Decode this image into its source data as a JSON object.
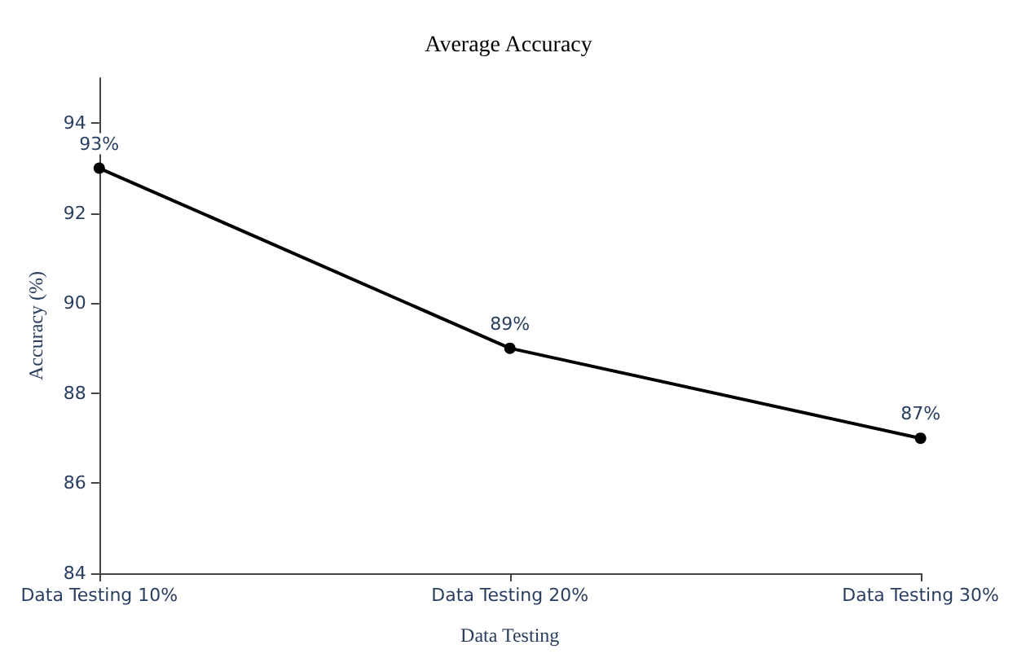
{
  "chart_data": {
    "type": "line",
    "title": "Average Accuracy",
    "xlabel": "Data Testing",
    "ylabel": "Accuracy (%)",
    "categories": [
      "Data Testing 10%",
      "Data Testing 20%",
      "Data Testing 30%"
    ],
    "series": [
      {
        "color": "#000000",
        "values": [
          93,
          89,
          87
        ],
        "value_labels": [
          "93%",
          "89%",
          "87%"
        ]
      }
    ],
    "ylim": [
      84,
      95
    ],
    "yticks": [
      84,
      86,
      88,
      90,
      92,
      94
    ],
    "grid": false,
    "marker": "circle",
    "line_style": "solid"
  }
}
